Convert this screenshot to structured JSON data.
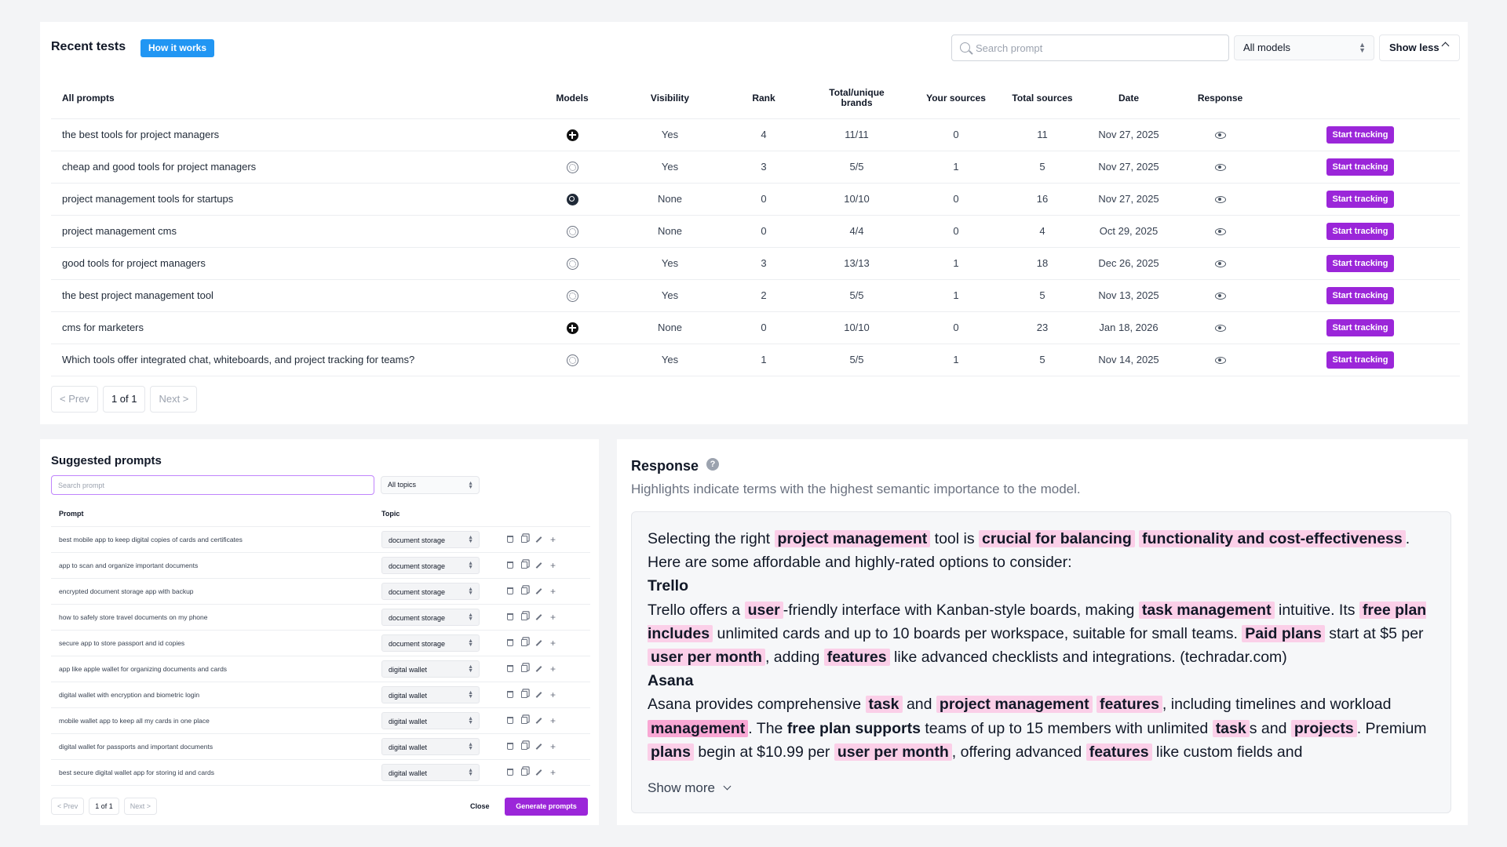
{
  "tests": {
    "title": "Recent tests",
    "how_it_works": "How it works",
    "search_placeholder": "Search prompt",
    "models_select": "All models",
    "show_less": "Show less",
    "columns": [
      "All prompts",
      "Models",
      "Visibility",
      "Rank",
      "Total/unique brands",
      "Your sources",
      "Total sources",
      "Date",
      "Response",
      ""
    ],
    "rows": [
      {
        "prompt": "the best tools for project managers",
        "model_icon": "plus-circle-icon",
        "visibility": "Yes",
        "rank": "4",
        "brands": "11/11",
        "your_sources": "0",
        "total_sources": "11",
        "date": "Nov 27, 2025",
        "action": "Start tracking"
      },
      {
        "prompt": "cheap and good tools for project managers",
        "model_icon": "openai-icon",
        "visibility": "Yes",
        "rank": "3",
        "brands": "5/5",
        "your_sources": "1",
        "total_sources": "5",
        "date": "Nov 27, 2025",
        "action": "Start tracking"
      },
      {
        "prompt": "project management tools for startups",
        "model_icon": "perplexity-icon",
        "visibility": "None",
        "rank": "0",
        "brands": "10/10",
        "your_sources": "0",
        "total_sources": "16",
        "date": "Nov 27, 2025",
        "action": "Start tracking"
      },
      {
        "prompt": "project management cms",
        "model_icon": "openai-icon",
        "visibility": "None",
        "rank": "0",
        "brands": "4/4",
        "your_sources": "0",
        "total_sources": "4",
        "date": "Oct 29, 2025",
        "action": "Start tracking"
      },
      {
        "prompt": "good tools for project managers",
        "model_icon": "openai-icon",
        "visibility": "Yes",
        "rank": "3",
        "brands": "13/13",
        "your_sources": "1",
        "total_sources": "18",
        "date": "Dec 26, 2025",
        "action": "Start tracking"
      },
      {
        "prompt": "the best project management tool",
        "model_icon": "openai-icon",
        "visibility": "Yes",
        "rank": "2",
        "brands": "5/5",
        "your_sources": "1",
        "total_sources": "5",
        "date": "Nov 13, 2025",
        "action": "Start tracking"
      },
      {
        "prompt": "cms for marketers",
        "model_icon": "plus-circle-icon",
        "visibility": "None",
        "rank": "0",
        "brands": "10/10",
        "your_sources": "0",
        "total_sources": "23",
        "date": "Jan 18, 2026",
        "action": "Start tracking"
      },
      {
        "prompt": "Which tools offer integrated chat, whiteboards, and project tracking for teams?",
        "model_icon": "openai-icon",
        "visibility": "Yes",
        "rank": "1",
        "brands": "5/5",
        "your_sources": "1",
        "total_sources": "5",
        "date": "Nov 14, 2025",
        "action": "Start tracking"
      }
    ],
    "pager": {
      "prev": "< Prev",
      "page": "1 of 1",
      "next": "Next >"
    }
  },
  "suggested": {
    "title": "Suggested prompts",
    "search_placeholder": "Search prompt",
    "topics_select": "All topics",
    "columns": [
      "Prompt",
      "Topic"
    ],
    "rows": [
      {
        "prompt": "best mobile app to keep digital copies of cards and certificates",
        "topic": "document storage"
      },
      {
        "prompt": "app to scan and organize important documents",
        "topic": "document storage"
      },
      {
        "prompt": "encrypted document storage app with backup",
        "topic": "document storage"
      },
      {
        "prompt": "how to safely store travel documents on my phone",
        "topic": "document storage"
      },
      {
        "prompt": "secure app to store passport and id copies",
        "topic": "document storage"
      },
      {
        "prompt": "app like apple wallet for organizing documents and cards",
        "topic": "digital wallet"
      },
      {
        "prompt": "digital wallet with encryption and biometric login",
        "topic": "digital wallet"
      },
      {
        "prompt": "mobile wallet app to keep all my cards in one place",
        "topic": "digital wallet"
      },
      {
        "prompt": "digital wallet for passports and important documents",
        "topic": "digital wallet"
      },
      {
        "prompt": "best secure digital wallet app for storing id and cards",
        "topic": "digital wallet"
      }
    ],
    "pager": {
      "prev": "< Prev",
      "page": "1 of 1",
      "next": "Next >"
    },
    "close": "Close",
    "generate": "Generate prompts"
  },
  "response": {
    "title": "Response",
    "help": "?",
    "subtitle": "Highlights indicate terms with the highest semantic importance to the model.",
    "show_more": "Show more",
    "paragraphs": [
      [
        [
          "Selecting the right ",
          ""
        ],
        [
          "project management",
          "hl"
        ],
        [
          " tool is ",
          ""
        ],
        [
          "crucial for balancing",
          "hl"
        ],
        [
          " ",
          ""
        ],
        [
          "functionality and cost-effectiveness",
          "hl"
        ],
        [
          ". Here are some affordable and highly-rated options to consider:",
          ""
        ]
      ],
      [
        [
          "Trello",
          "hb"
        ]
      ],
      [
        [
          "Trello offers a ",
          ""
        ],
        [
          "user",
          "hl"
        ],
        [
          "-friendly interface with Kanban-style boards, making ",
          ""
        ],
        [
          "task management",
          "hl"
        ],
        [
          " intuitive. Its ",
          ""
        ],
        [
          "free plan includes",
          "hl"
        ],
        [
          " unlimited cards and up to 10 boards per workspace, suitable for small teams. ",
          ""
        ],
        [
          "Paid plans",
          "hl"
        ],
        [
          " start at $5 per ",
          ""
        ],
        [
          "user per month",
          "hl"
        ],
        [
          ", adding ",
          ""
        ],
        [
          "features",
          "hl"
        ],
        [
          " like advanced checklists and integrations. (techradar.com)",
          ""
        ]
      ],
      [
        [
          "Asana",
          "hb"
        ]
      ],
      [
        [
          "Asana provides comprehensive ",
          ""
        ],
        [
          "task",
          "hl"
        ],
        [
          " and ",
          ""
        ],
        [
          "project management",
          "hl"
        ],
        [
          " ",
          ""
        ],
        [
          "features",
          "hl"
        ],
        [
          ", including timelines and workload ",
          ""
        ],
        [
          "management",
          "hl2"
        ],
        [
          ". The ",
          ""
        ],
        [
          "free plan supports",
          "hb"
        ],
        [
          " teams of up to 15 members with unlimited ",
          ""
        ],
        [
          "task",
          "hl"
        ],
        [
          "s and ",
          ""
        ],
        [
          "projects",
          "hl"
        ],
        [
          ". Premium ",
          ""
        ],
        [
          "plans",
          "hl"
        ],
        [
          " begin at $10.99 per ",
          ""
        ],
        [
          "user per month",
          "hl"
        ],
        [
          ", offering advanced ",
          ""
        ],
        [
          "features",
          "hl"
        ],
        [
          " like custom fields and",
          ""
        ]
      ]
    ]
  }
}
